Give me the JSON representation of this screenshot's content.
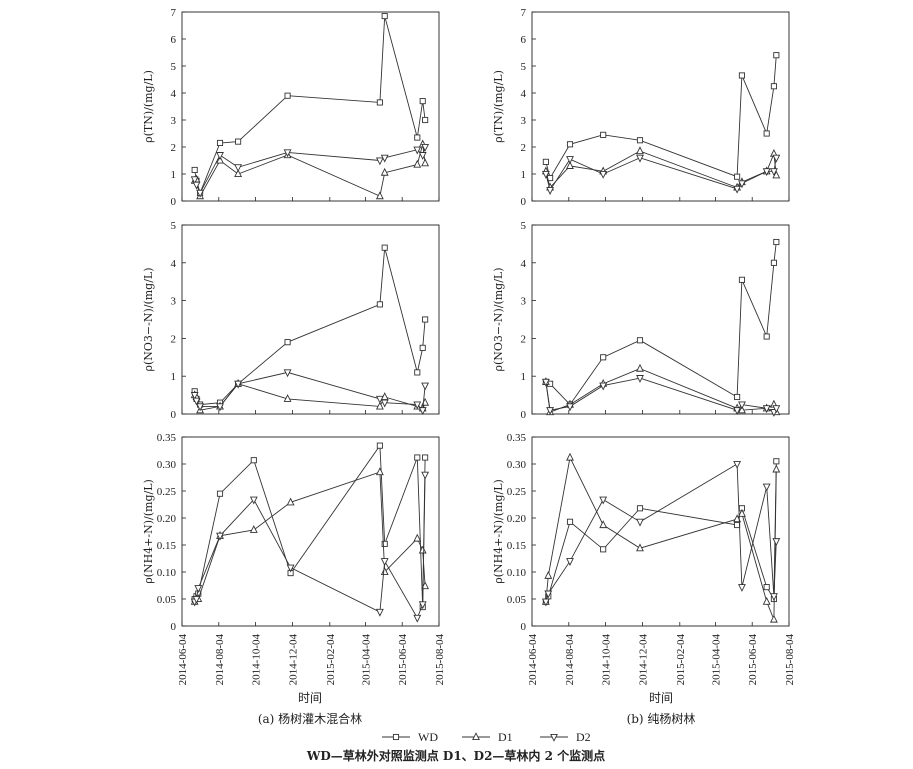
{
  "figure": {
    "caption_a": "(a) 杨树灌木混合林",
    "caption_b": "(b) 纯杨树林",
    "xlabel": "时间",
    "footnote": "WD—草林外对照监测点 D1、D2—草林内 2 个监测点"
  },
  "legend": [
    {
      "name": "WD",
      "marker": "square"
    },
    {
      "name": "D1",
      "marker": "triangle-up"
    },
    {
      "name": "D2",
      "marker": "triangle-down"
    }
  ],
  "colors": {
    "line": "#333333",
    "axis": "#222222",
    "background": "#ffffff"
  },
  "x_ticks": [
    "2014-06-04",
    "2014-08-04",
    "2014-10-04",
    "2014-12-04",
    "2015-02-04",
    "2015-04-04",
    "2015-06-04",
    "2015-08-04"
  ],
  "chart_data": [
    {
      "type": "line",
      "panel": "a",
      "row": 0,
      "ylabel": "ρ(TN)/(mg/L)",
      "ylim": [
        0,
        7
      ],
      "yticks": [
        "0",
        "1",
        "2",
        "3",
        "4",
        "5",
        "6",
        "7"
      ],
      "xlim": [
        "2014-06-04",
        "2015-08-04"
      ],
      "series": [
        {
          "name": "WD",
          "x": [
            "2014-06-25",
            "2014-06-28",
            "2014-07-04",
            "2014-08-06",
            "2014-09-05",
            "2014-11-26",
            "2015-04-28",
            "2015-05-06",
            "2015-06-29",
            "2015-07-08",
            "2015-07-12"
          ],
          "values": [
            1.15,
            0.75,
            0.3,
            2.15,
            2.2,
            3.9,
            3.65,
            6.85,
            2.35,
            3.7,
            3.0
          ]
        },
        {
          "name": "D1",
          "x": [
            "2014-06-25",
            "2014-06-28",
            "2014-07-04",
            "2014-08-06",
            "2014-09-05",
            "2014-11-26",
            "2015-04-28",
            "2015-05-06",
            "2015-06-29",
            "2015-07-08",
            "2015-07-12"
          ],
          "values": [
            0.75,
            0.8,
            0.18,
            1.5,
            1.0,
            1.7,
            0.18,
            1.05,
            1.35,
            2.1,
            1.4
          ]
        },
        {
          "name": "D2",
          "x": [
            "2014-06-25",
            "2014-06-28",
            "2014-07-04",
            "2014-08-06",
            "2014-09-05",
            "2014-11-26",
            "2015-04-28",
            "2015-05-06",
            "2015-06-29",
            "2015-07-08",
            "2015-07-12"
          ],
          "values": [
            0.8,
            0.6,
            0.3,
            1.7,
            1.25,
            1.8,
            1.5,
            1.6,
            1.9,
            1.7,
            2.0
          ]
        }
      ]
    },
    {
      "type": "line",
      "panel": "b",
      "row": 0,
      "ylabel": "ρ(TN)/(mg/L)",
      "ylim": [
        0,
        7
      ],
      "yticks": [
        "0",
        "1",
        "2",
        "3",
        "4",
        "5",
        "6",
        "7"
      ],
      "xlim": [
        "2014-06-04",
        "2015-08-04"
      ],
      "series": [
        {
          "name": "WD",
          "x": [
            "2014-06-27",
            "2014-07-04",
            "2014-08-06",
            "2014-09-30",
            "2014-11-30",
            "2015-05-10",
            "2015-05-18",
            "2015-06-28",
            "2015-07-10",
            "2015-07-14"
          ],
          "values": [
            1.45,
            0.85,
            2.1,
            2.45,
            2.25,
            0.9,
            4.65,
            2.5,
            4.25,
            5.4
          ]
        },
        {
          "name": "D1",
          "x": [
            "2014-06-27",
            "2014-07-04",
            "2014-08-06",
            "2014-09-30",
            "2014-11-30",
            "2015-05-10",
            "2015-05-18",
            "2015-06-28",
            "2015-07-10",
            "2015-07-14"
          ],
          "values": [
            1.1,
            0.5,
            1.3,
            1.1,
            1.85,
            0.5,
            0.7,
            1.1,
            1.75,
            0.95
          ]
        },
        {
          "name": "D2",
          "x": [
            "2014-06-27",
            "2014-07-04",
            "2014-08-06",
            "2014-09-30",
            "2014-11-30",
            "2015-05-10",
            "2015-05-18",
            "2015-06-28",
            "2015-07-10",
            "2015-07-14"
          ],
          "values": [
            1.0,
            0.4,
            1.55,
            1.0,
            1.6,
            0.45,
            0.65,
            1.1,
            1.1,
            1.6
          ]
        }
      ]
    },
    {
      "type": "line",
      "panel": "a",
      "row": 1,
      "ylabel": "ρ(NO3−-N)/(mg/L)",
      "ylim": [
        0,
        5
      ],
      "yticks": [
        "0",
        "1",
        "2",
        "3",
        "4",
        "5"
      ],
      "xlim": [
        "2014-06-04",
        "2015-08-04"
      ],
      "series": [
        {
          "name": "WD",
          "x": [
            "2014-06-25",
            "2014-06-28",
            "2014-07-04",
            "2014-08-06",
            "2014-09-05",
            "2014-11-26",
            "2015-04-28",
            "2015-05-06",
            "2015-06-29",
            "2015-07-08",
            "2015-07-12"
          ],
          "values": [
            0.6,
            0.4,
            0.25,
            0.3,
            0.8,
            1.9,
            2.9,
            4.4,
            1.1,
            1.75,
            2.5
          ]
        },
        {
          "name": "D1",
          "x": [
            "2014-06-25",
            "2014-06-28",
            "2014-07-04",
            "2014-08-06",
            "2014-09-05",
            "2014-11-26",
            "2015-04-28",
            "2015-05-06",
            "2015-06-29",
            "2015-07-08",
            "2015-07-12"
          ],
          "values": [
            0.5,
            0.45,
            0.1,
            0.2,
            0.8,
            0.4,
            0.2,
            0.45,
            0.2,
            0.15,
            0.3
          ]
        },
        {
          "name": "D2",
          "x": [
            "2014-06-25",
            "2014-06-28",
            "2014-07-04",
            "2014-08-06",
            "2014-09-05",
            "2014-11-26",
            "2015-04-28",
            "2015-05-06",
            "2015-06-29",
            "2015-07-08",
            "2015-07-12"
          ],
          "values": [
            0.5,
            0.35,
            0.2,
            0.2,
            0.8,
            1.1,
            0.4,
            0.3,
            0.25,
            0.1,
            0.75
          ]
        }
      ]
    },
    {
      "type": "line",
      "panel": "b",
      "row": 1,
      "ylabel": "ρ(NO3−-N)/(mg/L)",
      "ylim": [
        0,
        5
      ],
      "yticks": [
        "0",
        "1",
        "2",
        "3",
        "4",
        "5"
      ],
      "xlim": [
        "2014-06-04",
        "2015-08-04"
      ],
      "series": [
        {
          "name": "WD",
          "x": [
            "2014-06-27",
            "2014-07-04",
            "2014-08-06",
            "2014-09-30",
            "2014-11-30",
            "2015-05-10",
            "2015-05-18",
            "2015-06-28",
            "2015-07-10",
            "2015-07-14"
          ],
          "values": [
            0.85,
            0.8,
            0.25,
            1.5,
            1.95,
            0.45,
            3.55,
            2.05,
            4.0,
            4.55
          ]
        },
        {
          "name": "D1",
          "x": [
            "2014-06-27",
            "2014-07-04",
            "2014-08-06",
            "2014-09-30",
            "2014-11-30",
            "2015-05-10",
            "2015-05-18",
            "2015-06-28",
            "2015-07-10",
            "2015-07-14"
          ],
          "values": [
            0.85,
            0.05,
            0.25,
            0.8,
            1.2,
            0.15,
            0.1,
            0.15,
            0.25,
            0.05
          ]
        },
        {
          "name": "D2",
          "x": [
            "2014-06-27",
            "2014-07-04",
            "2014-08-06",
            "2014-09-30",
            "2014-11-30",
            "2015-05-10",
            "2015-05-18",
            "2015-06-28",
            "2015-07-10",
            "2015-07-14"
          ],
          "values": [
            0.85,
            0.1,
            0.2,
            0.75,
            0.95,
            0.1,
            0.25,
            0.15,
            0.05,
            0.15
          ]
        }
      ]
    },
    {
      "type": "line",
      "panel": "a",
      "row": 2,
      "ylabel": "ρ(NH4+-N)/(mg/L)",
      "ylim": [
        0,
        0.35
      ],
      "yticks": [
        "0",
        "0.05",
        "0.10",
        "0.15",
        "0.20",
        "0.25",
        "0.30",
        "0.35"
      ],
      "xlim": [
        "2014-06-04",
        "2015-08-04"
      ],
      "series": [
        {
          "name": "WD",
          "x": [
            "2014-06-25",
            "2014-06-28",
            "2014-07-01",
            "2014-08-06",
            "2014-10-01",
            "2014-12-01",
            "2015-04-28",
            "2015-05-06",
            "2015-06-29",
            "2015-07-08",
            "2015-07-12"
          ],
          "values": [
            0.05,
            0.055,
            0.06,
            0.245,
            0.307,
            0.098,
            0.334,
            0.152,
            0.312,
            0.035,
            0.312
          ]
        },
        {
          "name": "D1",
          "x": [
            "2014-06-25",
            "2014-06-28",
            "2014-07-01",
            "2014-08-06",
            "2014-10-01",
            "2014-12-01",
            "2015-04-28",
            "2015-05-06",
            "2015-06-29",
            "2015-07-08",
            "2015-07-12"
          ],
          "values": [
            0.045,
            0.05,
            0.05,
            0.167,
            0.178,
            0.229,
            0.285,
            0.1,
            0.162,
            0.14,
            0.074
          ]
        },
        {
          "name": "D2",
          "x": [
            "2014-06-25",
            "2014-06-28",
            "2014-07-01",
            "2014-08-06",
            "2014-10-01",
            "2014-12-01",
            "2015-04-28",
            "2015-05-06",
            "2015-06-29",
            "2015-07-08",
            "2015-07-12"
          ],
          "values": [
            0.045,
            0.05,
            0.07,
            0.167,
            0.234,
            0.108,
            0.026,
            0.12,
            0.015,
            0.04,
            0.28
          ]
        }
      ]
    },
    {
      "type": "line",
      "panel": "b",
      "row": 2,
      "ylabel": "ρ(NH4+-N)/(mg/L)",
      "ylim": [
        0,
        0.35
      ],
      "yticks": [
        "0",
        "0.05",
        "0.10",
        "0.15",
        "0.20",
        "0.25",
        "0.30",
        "0.35"
      ],
      "xlim": [
        "2014-06-04",
        "2015-08-04"
      ],
      "series": [
        {
          "name": "WD",
          "x": [
            "2014-06-27",
            "2014-07-01",
            "2014-08-06",
            "2014-09-30",
            "2014-11-30",
            "2015-05-10",
            "2015-05-18",
            "2015-06-28",
            "2015-07-10",
            "2015-07-14"
          ],
          "values": [
            0.045,
            0.055,
            0.193,
            0.142,
            0.218,
            0.187,
            0.218,
            0.072,
            0.05,
            0.305
          ]
        },
        {
          "name": "D1",
          "x": [
            "2014-06-27",
            "2014-07-01",
            "2014-08-06",
            "2014-09-30",
            "2014-11-30",
            "2015-05-10",
            "2015-05-18",
            "2015-06-28",
            "2015-07-10",
            "2015-07-14"
          ],
          "values": [
            0.045,
            0.093,
            0.312,
            0.187,
            0.144,
            0.198,
            0.208,
            0.045,
            0.012,
            0.29
          ]
        },
        {
          "name": "D2",
          "x": [
            "2014-06-27",
            "2014-07-01",
            "2014-08-06",
            "2014-09-30",
            "2014-11-30",
            "2015-05-10",
            "2015-05-18",
            "2015-06-28",
            "2015-07-10",
            "2015-07-14"
          ],
          "values": [
            0.045,
            0.06,
            0.12,
            0.234,
            0.193,
            0.3,
            0.072,
            0.258,
            0.055,
            0.157
          ]
        }
      ]
    }
  ]
}
